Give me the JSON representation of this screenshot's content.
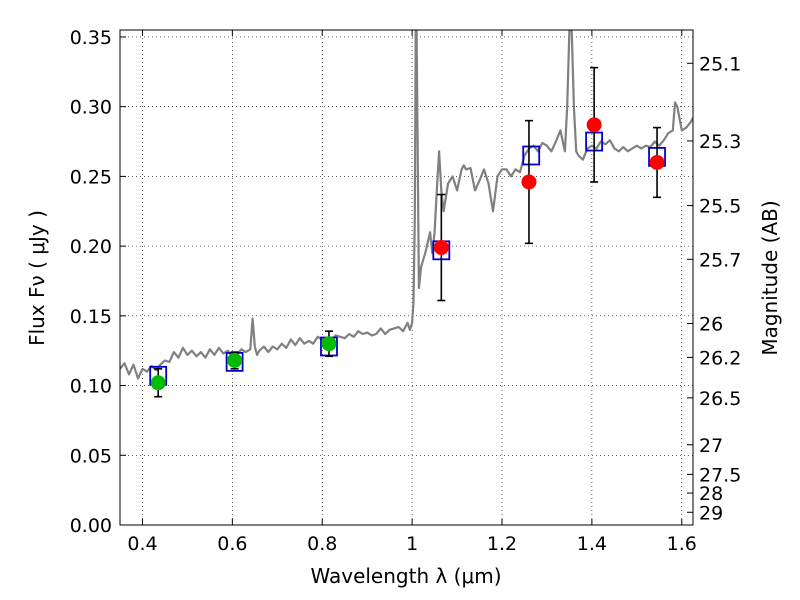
{
  "chart_data": {
    "type": "scatter",
    "xlabel": "Wavelength  λ (μm)",
    "ylabel": "Flux  Fν  ( μJy )",
    "y2label": "Magnitude (AB)",
    "xlim": [
      0.35,
      1.625
    ],
    "ylim": [
      0.0,
      0.355
    ],
    "grid": true,
    "x_ticks": [
      0.4,
      0.6,
      0.8,
      1.0,
      1.2,
      1.4,
      1.6
    ],
    "x_tick_labels": [
      "0.4",
      "0.6",
      "0.8",
      "1",
      "1.2",
      "1.4",
      "1.6"
    ],
    "y_ticks": [
      0.0,
      0.05,
      0.1,
      0.15,
      0.2,
      0.25,
      0.3,
      0.35
    ],
    "y_tick_labels": [
      "0.00",
      "0.05",
      "0.10",
      "0.15",
      "0.20",
      "0.25",
      "0.30",
      "0.35"
    ],
    "y2_ticks": [
      "25.1",
      "25.3",
      "25.5",
      "25.7",
      "26",
      "26.2",
      "26.5",
      "27",
      "27.5",
      "28",
      "29"
    ],
    "colors": {
      "template": "#808080",
      "optical": "#00bb00",
      "nir": "#ff0000",
      "model": "#0000cc",
      "errorbar": "#000000"
    },
    "series": [
      {
        "kind": "line",
        "x": [
          0.35,
          0.36,
          0.37,
          0.38,
          0.39,
          0.4,
          0.41,
          0.42,
          0.43,
          0.44,
          0.45,
          0.46,
          0.47,
          0.48,
          0.49,
          0.5,
          0.51,
          0.52,
          0.53,
          0.54,
          0.55,
          0.56,
          0.57,
          0.58,
          0.59,
          0.6,
          0.61,
          0.62,
          0.63,
          0.64,
          0.645,
          0.65,
          0.655,
          0.66,
          0.67,
          0.68,
          0.69,
          0.7,
          0.71,
          0.72,
          0.73,
          0.74,
          0.75,
          0.76,
          0.77,
          0.78,
          0.79,
          0.8,
          0.81,
          0.82,
          0.83,
          0.84,
          0.85,
          0.86,
          0.87,
          0.88,
          0.89,
          0.9,
          0.91,
          0.92,
          0.93,
          0.94,
          0.95,
          0.96,
          0.97,
          0.98,
          0.99,
          0.995,
          1.0,
          1.003,
          1.006,
          1.008,
          1.01,
          1.015,
          1.02,
          1.03,
          1.04,
          1.045,
          1.05,
          1.055,
          1.06,
          1.065,
          1.07,
          1.08,
          1.09,
          1.1,
          1.11,
          1.115,
          1.12,
          1.13,
          1.14,
          1.15,
          1.16,
          1.17,
          1.18,
          1.19,
          1.2,
          1.21,
          1.22,
          1.23,
          1.24,
          1.25,
          1.26,
          1.27,
          1.28,
          1.29,
          1.3,
          1.31,
          1.32,
          1.33,
          1.34,
          1.345,
          1.35,
          1.355,
          1.36,
          1.365,
          1.37,
          1.38,
          1.39,
          1.4,
          1.41,
          1.42,
          1.43,
          1.44,
          1.45,
          1.46,
          1.47,
          1.48,
          1.49,
          1.5,
          1.51,
          1.52,
          1.53,
          1.54,
          1.55,
          1.56,
          1.57,
          1.58,
          1.585,
          1.59,
          1.6,
          1.61,
          1.62,
          1.625
        ],
        "y": [
          0.112,
          0.116,
          0.108,
          0.115,
          0.105,
          0.112,
          0.11,
          0.114,
          0.111,
          0.115,
          0.118,
          0.117,
          0.124,
          0.12,
          0.127,
          0.122,
          0.125,
          0.121,
          0.124,
          0.12,
          0.126,
          0.122,
          0.127,
          0.123,
          0.125,
          0.12,
          0.122,
          0.126,
          0.124,
          0.126,
          0.148,
          0.128,
          0.122,
          0.125,
          0.128,
          0.124,
          0.128,
          0.126,
          0.13,
          0.127,
          0.133,
          0.129,
          0.134,
          0.13,
          0.132,
          0.13,
          0.135,
          0.133,
          0.134,
          0.132,
          0.136,
          0.135,
          0.134,
          0.137,
          0.135,
          0.139,
          0.137,
          0.138,
          0.136,
          0.137,
          0.141,
          0.137,
          0.14,
          0.141,
          0.142,
          0.139,
          0.145,
          0.14,
          0.145,
          0.16,
          0.22,
          0.355,
          0.355,
          0.17,
          0.185,
          0.196,
          0.21,
          0.195,
          0.21,
          0.24,
          0.268,
          0.24,
          0.225,
          0.245,
          0.25,
          0.24,
          0.255,
          0.258,
          0.255,
          0.256,
          0.24,
          0.247,
          0.255,
          0.245,
          0.225,
          0.25,
          0.255,
          0.255,
          0.25,
          0.255,
          0.253,
          0.265,
          0.27,
          0.272,
          0.268,
          0.274,
          0.272,
          0.268,
          0.275,
          0.283,
          0.268,
          0.3,
          0.355,
          0.355,
          0.3,
          0.268,
          0.265,
          0.262,
          0.27,
          0.272,
          0.27,
          0.275,
          0.273,
          0.276,
          0.27,
          0.268,
          0.271,
          0.268,
          0.27,
          0.272,
          0.27,
          0.272,
          0.271,
          0.275,
          0.272,
          0.276,
          0.281,
          0.283,
          0.303,
          0.3,
          0.283,
          0.285,
          0.289,
          0.292
        ]
      },
      {
        "kind": "model-squares",
        "x": [
          0.435,
          0.605,
          0.815,
          1.065,
          1.265,
          1.405,
          1.545
        ],
        "y": [
          0.107,
          0.117,
          0.128,
          0.197,
          0.265,
          0.275,
          0.264
        ]
      },
      {
        "kind": "optical-points",
        "x": [
          0.435,
          0.605,
          0.815
        ],
        "y": [
          0.102,
          0.118,
          0.13
        ],
        "err": [
          0.01,
          0.006,
          0.009
        ]
      },
      {
        "kind": "nir-points",
        "x": [
          1.065,
          1.26,
          1.405,
          1.545
        ],
        "y": [
          0.199,
          0.246,
          0.287,
          0.26
        ],
        "err": [
          0.038,
          0.044,
          0.041,
          0.025
        ]
      }
    ]
  }
}
